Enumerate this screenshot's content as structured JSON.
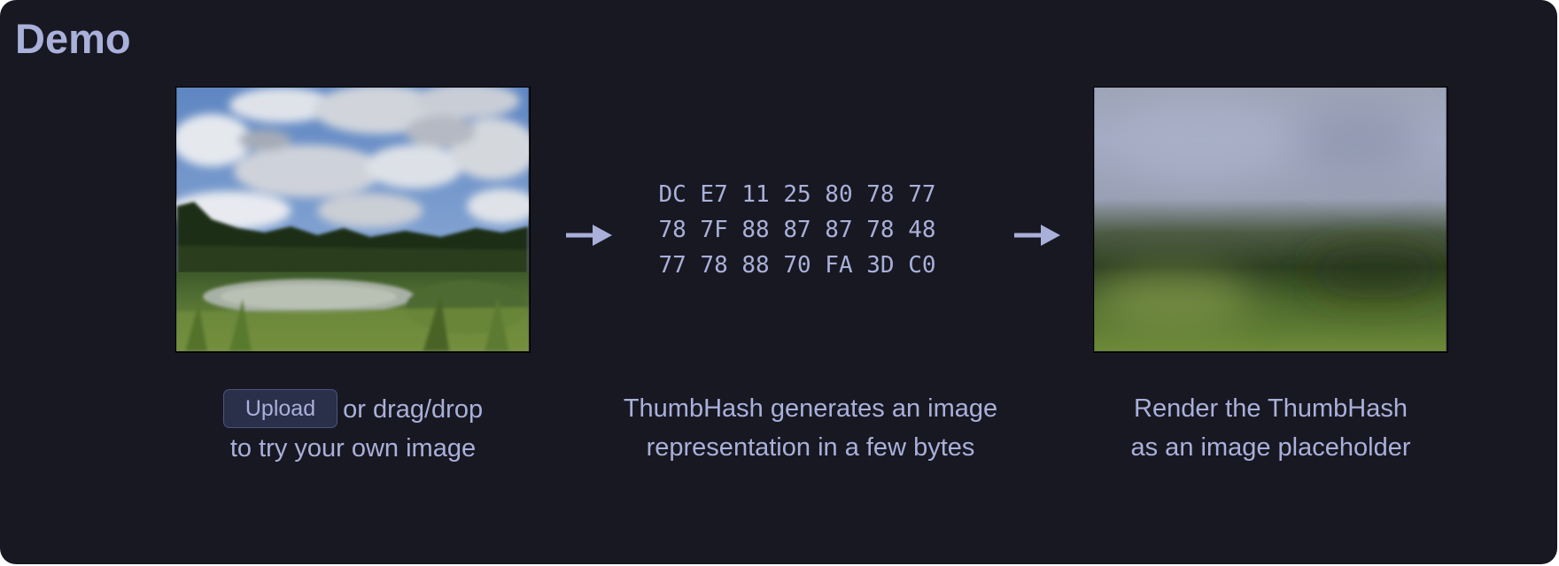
{
  "section": {
    "title": "Demo"
  },
  "original_image": {
    "label": "landscape photo with clouds, trees and a pond"
  },
  "upload": {
    "button_label": "Upload",
    "line1_suffix": "or drag/drop",
    "line2": "to try your own image"
  },
  "hash": {
    "rows": [
      "DC E7 11 25 80 78 77",
      "78 7F 88 87 87 78 48",
      "77 78 88 70 FA 3D C0"
    ],
    "caption_line1": "ThumbHash generates an image",
    "caption_line2": "representation in a few bytes"
  },
  "placeholder": {
    "caption_line1": "Render the ThumbHash",
    "caption_line2": "as an image placeholder"
  },
  "icons": {
    "arrow": "right-arrow-icon"
  },
  "colors": {
    "panel_bg": "#181822",
    "text": "#a9b0d9",
    "button_bg": "#2a2f4a"
  }
}
